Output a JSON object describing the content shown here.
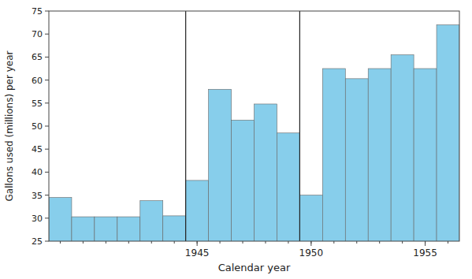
{
  "chart_data": {
    "type": "bar",
    "xlabel": "Calendar year",
    "ylabel": "Gallons used (millions) per year",
    "x": [
      1939,
      1940,
      1941,
      1942,
      1943,
      1944,
      1945,
      1946,
      1947,
      1948,
      1949,
      1950,
      1951,
      1952,
      1953,
      1954,
      1955,
      1956
    ],
    "values": [
      34.5,
      30.3,
      30.3,
      30.3,
      33.8,
      30.5,
      38.2,
      58.0,
      51.3,
      54.8,
      48.5,
      35.0,
      62.5,
      60.3,
      62.5,
      65.5,
      62.5,
      72.0
    ],
    "color": "#87CEEB",
    "xlim": [
      1938.5,
      1956.5
    ],
    "xticks": [
      1945,
      1950,
      1955
    ],
    "ylim": [
      25,
      75
    ],
    "yticks": [
      25,
      30,
      35,
      40,
      45,
      50,
      55,
      60,
      65,
      70,
      75
    ],
    "vlines": [
      1944.5,
      1949.5
    ],
    "grid": false
  }
}
